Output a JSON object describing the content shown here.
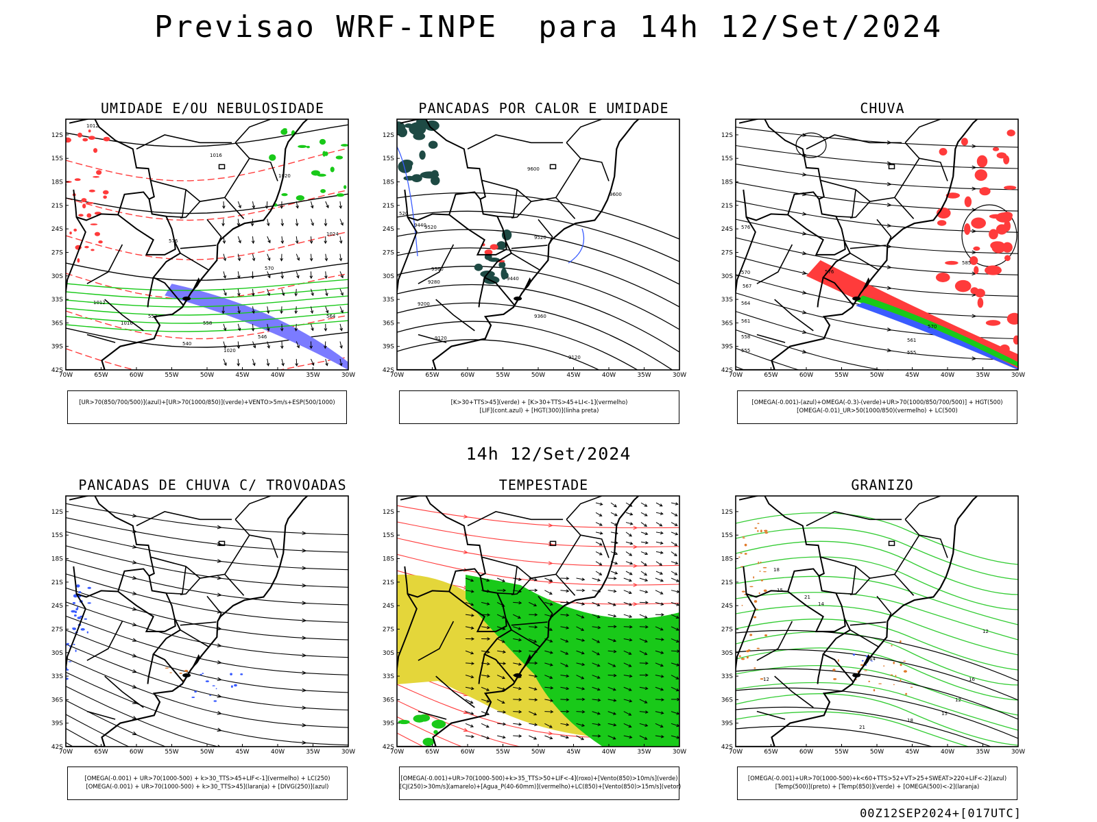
{
  "title": "Previsao WRF-INPE  para 14h 12/Set/2024",
  "subtitle": "14h 12/Set/2024",
  "footer": "00Z12SEP2024+[017UTC]",
  "axes": {
    "lat_labels": [
      "12S",
      "15S",
      "18S",
      "21S",
      "24S",
      "27S",
      "30S",
      "33S",
      "36S",
      "39S",
      "42S"
    ],
    "lon_labels": [
      "70W",
      "65W",
      "60W",
      "55W",
      "50W",
      "45W",
      "40W",
      "35W",
      "30W"
    ]
  },
  "panels": [
    {
      "title": "UMIDADE E/OU NEBULOSIDADE",
      "legend": [
        "[UR>70(850/700/500)](azul)+[UR>70(1000/850)](verde)+VENTO>5m/s+ESP(500/1000)"
      ],
      "contour_labels": [
        "1012",
        "1016",
        "1020",
        "1024",
        "1012",
        "1016",
        "576",
        "570",
        "564",
        "558",
        "552",
        "546",
        "540",
        "1020"
      ]
    },
    {
      "title": "PANCADAS POR CALOR E UMIDADE",
      "legend": [
        "[K>30+TTS>45](verde) + [K>30+TTS>45+LI<-1](vermelho)",
        "[LIF](cont.azul) + [HGT(300)](linha preta)"
      ],
      "contour_labels": [
        "9600",
        "9600",
        "9520",
        "9520",
        "9440",
        "9440",
        "9360",
        "9360",
        "9280",
        "9200",
        "9120",
        "9120",
        "520"
      ]
    },
    {
      "title": "CHUVA",
      "legend": [
        "[OMEGA(-0.001)-(azul)+OMEGA(-0.3)-(verde)+UR>70(1000/850/700/500)] + HGT(500)",
        "[OMEGA(-0.01)_UR>50(1000/850)(vermelho) + LC(500)"
      ],
      "contour_labels": [
        "576",
        "570",
        "567",
        "564",
        "561",
        "558",
        "555",
        "576",
        "570",
        "561",
        "555",
        "585"
      ]
    },
    {
      "title": "PANCADAS DE CHUVA C/ TROVOADAS",
      "legend": [
        "[OMEGA(-0.001) + UR>70(1000-500) + k>30_TTS>45+LIF<-1](vermelho) + LC(250)",
        "[OMEGA(-0.001) + UR>70(1000-500) + k>30_TTS>45](laranja) + [DIVG(250)](azul)"
      ],
      "contour_labels": []
    },
    {
      "title": "TEMPESTADE",
      "legend": [
        "[OMEGA(-0.001)+UR>70(1000-500)+k>35_TTS>50+LIF<-4](roxo)+[Vento(850)>10m/s](verde)",
        "[CJ(250)>30m/s](amarelo)+[Agua_P(40-60mm)](vermelho)+LC(850)+[Vento(850)>15m/s](vetor)"
      ],
      "contour_labels": []
    },
    {
      "title": "GRANIZO",
      "legend": [
        "[OMEGA(-0.001)+UR>70(1000-500)+k<60+TTS>52+VT>25+SWEAT>220+LIF<-2](azul)",
        "[Temp(500)](preto) + [Temp(850)](verde) + [OMEGA(500)<-2](laranja)"
      ],
      "contour_labels": [
        "12",
        "15",
        "18",
        "21",
        "14",
        "16",
        "12",
        "15",
        "18",
        "21",
        "14",
        "12"
      ]
    }
  ],
  "colors": {
    "frame": "#000000",
    "red": "#ff3b3b",
    "green": "#19c919",
    "blue": "#3a5cff",
    "yellow": "#e4d63a",
    "darkteal": "#1e4a44",
    "orange": "#e07a2a",
    "lightgreen": "#33cc33"
  }
}
